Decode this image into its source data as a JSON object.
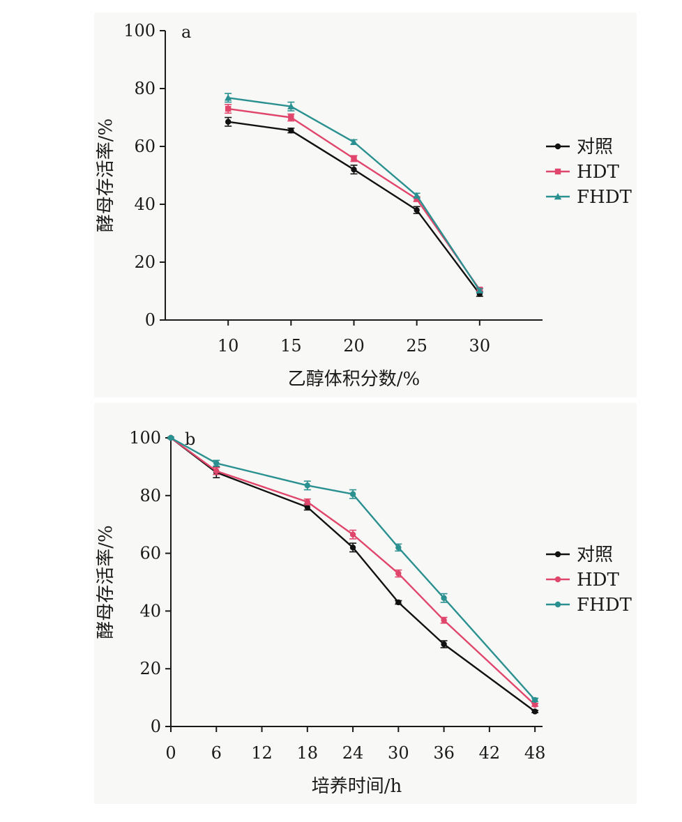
{
  "chart_data": [
    {
      "type": "line",
      "panel_label": "a",
      "xlabel": "乙醇体积分数/%",
      "ylabel": "酵母存活率/%",
      "x": [
        10,
        15,
        20,
        25,
        30
      ],
      "xlim": [
        5,
        35
      ],
      "xticks": [
        10,
        15,
        20,
        25,
        30
      ],
      "ylim": [
        0,
        100
      ],
      "yticks": [
        0,
        20,
        40,
        60,
        80,
        100
      ],
      "grid": false,
      "legend_position": "right",
      "series": [
        {
          "name": "对照",
          "color": "#111111",
          "marker": "circle",
          "values": [
            68.5,
            65.5,
            52.0,
            38.0,
            9.0
          ],
          "errors": [
            1.5,
            0.8,
            1.5,
            1.2,
            0.8
          ]
        },
        {
          "name": "HDT",
          "color": "#e0456b",
          "marker": "square",
          "values": [
            73.0,
            70.0,
            55.8,
            41.8,
            10.5
          ],
          "errors": [
            1.5,
            1.2,
            1.0,
            0.8,
            0.6
          ]
        },
        {
          "name": "FHDT",
          "color": "#2a9090",
          "marker": "triangle",
          "values": [
            76.8,
            73.8,
            61.5,
            43.0,
            10.2
          ],
          "errors": [
            1.5,
            1.5,
            0.8,
            0.8,
            0.6
          ]
        }
      ]
    },
    {
      "type": "line",
      "panel_label": "b",
      "xlabel": "培养时间/h",
      "ylabel": "酵母存活率/%",
      "x": [
        0,
        6,
        18,
        24,
        30,
        36,
        48
      ],
      "xlim": [
        0,
        49
      ],
      "xticks": [
        0,
        6,
        12,
        18,
        24,
        30,
        36,
        42,
        48
      ],
      "ylim": [
        0,
        100
      ],
      "yticks": [
        0,
        20,
        40,
        60,
        80,
        100
      ],
      "grid": false,
      "legend_position": "right",
      "series": [
        {
          "name": "对照",
          "color": "#111111",
          "marker": "circle",
          "values": [
            100,
            88.0,
            76.0,
            62.0,
            43.0,
            28.5,
            5.2
          ],
          "errors": [
            0.3,
            1.8,
            1.0,
            1.5,
            0.6,
            1.2,
            0.4
          ]
        },
        {
          "name": "HDT",
          "color": "#e0456b",
          "marker": "circle",
          "values": [
            100,
            88.5,
            77.8,
            66.5,
            53.0,
            36.8,
            7.5
          ],
          "errors": [
            0.3,
            1.2,
            1.0,
            1.5,
            1.2,
            1.0,
            0.5
          ]
        },
        {
          "name": "FHDT",
          "color": "#2a9090",
          "marker": "circle",
          "values": [
            100,
            91.2,
            83.5,
            80.5,
            62.0,
            44.5,
            9.2
          ],
          "errors": [
            0.3,
            1.0,
            1.5,
            1.5,
            1.2,
            1.5,
            0.6
          ]
        }
      ]
    }
  ]
}
